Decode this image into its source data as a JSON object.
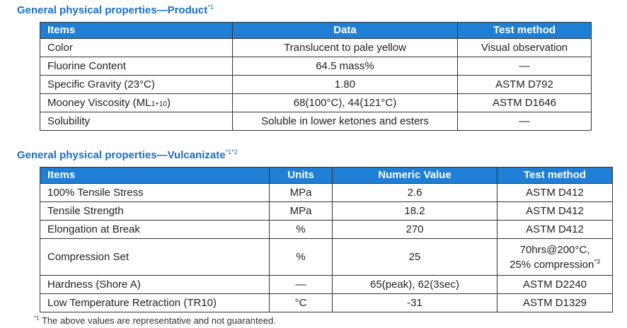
{
  "product": {
    "title": "General physical properties—Product",
    "title_note": "*1",
    "headers": [
      "Items",
      "Data",
      "Test method"
    ],
    "rows": [
      {
        "item": "Color",
        "data": "Translucent to pale yellow",
        "method": "Visual observation"
      },
      {
        "item": "Fluorine Content",
        "data": "64.5 mass%",
        "method": "—"
      },
      {
        "item": "Specific Gravity (23°C)",
        "data": "1.80",
        "method": "ASTM D792"
      },
      {
        "item_main": "Mooney Viscosity (ML",
        "item_sub": "1+10",
        "item_end": ")",
        "data": "68(100°C), 44(121°C)",
        "method": "ASTM D1646"
      },
      {
        "item": "Solubility",
        "data": "Soluble in lower ketones and esters",
        "method": "—"
      }
    ]
  },
  "vulcanizate": {
    "title": "General physical properties—Vulcanizate",
    "title_note": "*1*2",
    "headers": [
      "Items",
      "Units",
      "Numeric Value",
      "Test method"
    ],
    "rows": [
      {
        "item": "100% Tensile Stress",
        "unit": "MPa",
        "value": "2.6",
        "method": "ASTM D412"
      },
      {
        "item": "Tensile Strength",
        "unit": "MPa",
        "value": "18.2",
        "method": "ASTM D412"
      },
      {
        "item": "Elongation at Break",
        "unit": "%",
        "value": "270",
        "method": "ASTM D412"
      },
      {
        "item": "Compression Set",
        "unit": "%",
        "value": "25",
        "method_line1": "70hrs@200°C,",
        "method_line2": "25% compression",
        "method_note": "*3"
      },
      {
        "item": "Hardness (Shore A)",
        "unit": "—",
        "value": "65(peak), 62(3sec)",
        "method": "ASTM D2240"
      },
      {
        "item": "Low Temperature Retraction (TR10)",
        "unit": "°C",
        "value": "-31",
        "method": "ASTM D1329"
      }
    ]
  },
  "footnote": {
    "mark": "*1",
    "text": " The above values are representative and not guaranteed."
  }
}
